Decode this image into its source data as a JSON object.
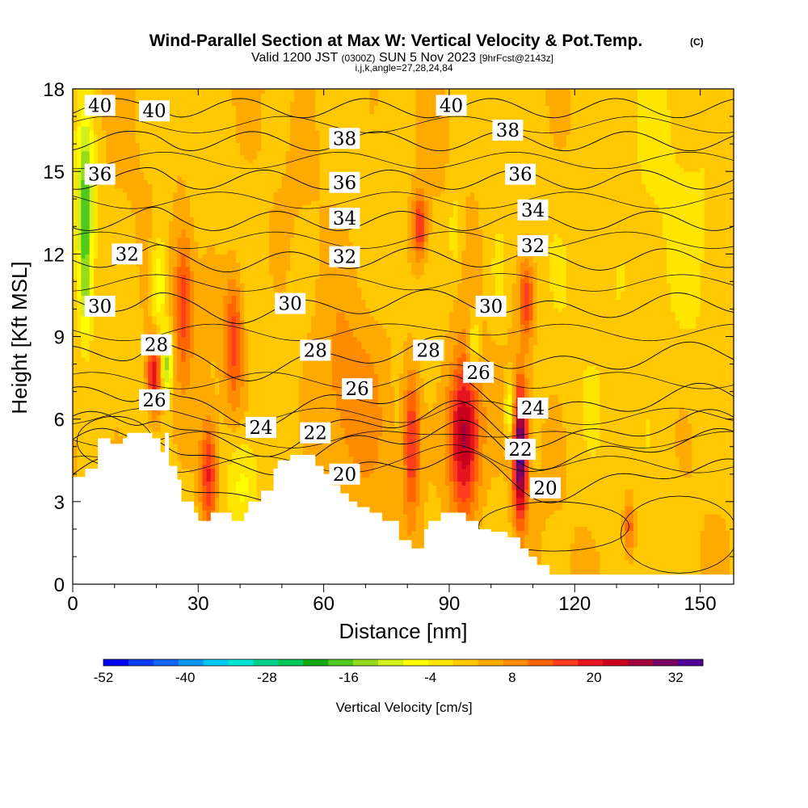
{
  "chart_data": {
    "type": "heatmap",
    "title": "Wind-Parallel Section at Max W: Vertical Velocity & Pot.Temp.",
    "title_mark": "(C)",
    "subtitle_valid": "Valid 1200 JST",
    "subtitle_utc": "(0300Z)",
    "subtitle_date": "SUN 5 Nov 2023",
    "subtitle_fcst": "[9hrFcst@2143z]",
    "subtitle_indices": "i,j,k,angle=27,28,24,84",
    "xlabel": "Distance [nm]",
    "ylabel": "Height [Kft MSL]",
    "xlim": [
      0,
      158
    ],
    "ylim": [
      0,
      18
    ],
    "x_ticks": [
      0,
      30,
      60,
      90,
      120,
      150
    ],
    "y_ticks": [
      0,
      3,
      6,
      9,
      12,
      15,
      18
    ],
    "colorbar": {
      "label": "Vertical Velocity [cm/s]",
      "tick_labels": [
        "-52",
        "-40",
        "-28",
        "-16",
        "-4",
        "8",
        "20",
        "32"
      ],
      "range": [
        -52,
        36
      ],
      "colors": [
        "#0000f0",
        "#0a3cf5",
        "#1464f5",
        "#0a96f0",
        "#00c8f0",
        "#00e6d2",
        "#00d28c",
        "#00c85a",
        "#14aa14",
        "#50c81e",
        "#96dc1e",
        "#d2f01e",
        "#ffff00",
        "#ffe600",
        "#ffc800",
        "#ffaa00",
        "#ff8c00",
        "#ff6400",
        "#ff3c1e",
        "#e6141e",
        "#c8001e",
        "#a0003c",
        "#780064",
        "#500096"
      ]
    },
    "contour_series_name": "Pot.Temp.",
    "contour_labels": [
      {
        "v": "40",
        "x": 6.5,
        "y": 17.4
      },
      {
        "v": "40",
        "x": 19.5,
        "y": 17.2
      },
      {
        "v": "40",
        "x": 90.5,
        "y": 17.4
      },
      {
        "v": "38",
        "x": 65,
        "y": 16.2
      },
      {
        "v": "38",
        "x": 104,
        "y": 16.5
      },
      {
        "v": "36",
        "x": 6.5,
        "y": 14.9
      },
      {
        "v": "36",
        "x": 65,
        "y": 14.6
      },
      {
        "v": "36",
        "x": 107,
        "y": 14.9
      },
      {
        "v": "34",
        "x": 65,
        "y": 13.3
      },
      {
        "v": "34",
        "x": 110,
        "y": 13.6
      },
      {
        "v": "32",
        "x": 13,
        "y": 12.0
      },
      {
        "v": "32",
        "x": 65,
        "y": 11.9
      },
      {
        "v": "32",
        "x": 110,
        "y": 12.3
      },
      {
        "v": "30",
        "x": 6.5,
        "y": 10.1
      },
      {
        "v": "30",
        "x": 52,
        "y": 10.2
      },
      {
        "v": "30",
        "x": 100,
        "y": 10.1
      },
      {
        "v": "28",
        "x": 20,
        "y": 8.7
      },
      {
        "v": "28",
        "x": 58,
        "y": 8.5
      },
      {
        "v": "28",
        "x": 85,
        "y": 8.5
      },
      {
        "v": "26",
        "x": 19.5,
        "y": 6.7
      },
      {
        "v": "26",
        "x": 68,
        "y": 7.1
      },
      {
        "v": "26",
        "x": 97,
        "y": 7.7
      },
      {
        "v": "24",
        "x": 45,
        "y": 5.7
      },
      {
        "v": "24",
        "x": 110,
        "y": 6.4
      },
      {
        "v": "22",
        "x": 58,
        "y": 5.5
      },
      {
        "v": "22",
        "x": 107,
        "y": 4.9
      },
      {
        "v": "20",
        "x": 65,
        "y": 4.0
      },
      {
        "v": "20",
        "x": 113,
        "y": 3.5
      }
    ],
    "contour_lines_theta": [
      20,
      22,
      24,
      26,
      28,
      30,
      32,
      34,
      36,
      38,
      40
    ],
    "vv_features": [
      {
        "x": 3,
        "y": 14.0,
        "sx": 1.4,
        "sy": 2.3,
        "w": -18
      },
      {
        "x": 3,
        "y": 10.8,
        "sx": 1.1,
        "sy": 1.4,
        "w": -10
      },
      {
        "x": 20.5,
        "y": 10.8,
        "sx": 1.3,
        "sy": 1.4,
        "w": -12
      },
      {
        "x": 22.5,
        "y": 8.0,
        "sx": 1.0,
        "sy": 0.8,
        "w": -16
      },
      {
        "x": 19.5,
        "y": 7.6,
        "sx": 1.3,
        "sy": 1.1,
        "w": 20
      },
      {
        "x": 26.5,
        "y": 10.3,
        "sx": 1.5,
        "sy": 1.8,
        "w": 14
      },
      {
        "x": 38.5,
        "y": 9.0,
        "sx": 1.6,
        "sy": 1.7,
        "w": 14
      },
      {
        "x": 32.5,
        "y": 4.0,
        "sx": 1.4,
        "sy": 1.4,
        "w": 16
      },
      {
        "x": 40.5,
        "y": 3.7,
        "sx": 2.8,
        "sy": 1.4,
        "w": -9
      },
      {
        "x": 93.5,
        "y": 5.4,
        "sx": 2.6,
        "sy": 2.0,
        "w": 26
      },
      {
        "x": 107,
        "y": 4.8,
        "sx": 1.2,
        "sy": 1.7,
        "w": 34
      },
      {
        "x": 81,
        "y": 5.2,
        "sx": 1.4,
        "sy": 1.8,
        "w": 16
      },
      {
        "x": 83,
        "y": 13.0,
        "sx": 1.2,
        "sy": 0.9,
        "w": 16
      },
      {
        "x": 91.5,
        "y": 12.8,
        "sx": 1.4,
        "sy": 1.4,
        "w": -6
      },
      {
        "x": 102,
        "y": 11.4,
        "sx": 1.4,
        "sy": 1.2,
        "w": -4
      },
      {
        "x": 108.5,
        "y": 10.3,
        "sx": 1.1,
        "sy": 1.0,
        "w": 14
      },
      {
        "x": 133,
        "y": 2.1,
        "sx": 1.0,
        "sy": 0.8,
        "w": 12
      },
      {
        "x": 96,
        "y": 8.7,
        "sx": 1.0,
        "sy": 0.8,
        "w": -10
      },
      {
        "x": 104.5,
        "y": 6.3,
        "sx": 0.8,
        "sy": 0.8,
        "w": -12
      },
      {
        "x": 66,
        "y": 6.5,
        "sx": 6,
        "sy": 2.5,
        "w": 6
      },
      {
        "x": 140,
        "y": 12.0,
        "sx": 14,
        "sy": 6.0,
        "w": -3
      }
    ],
    "terrain": [
      [
        0,
        3.9
      ],
      [
        3,
        3.9
      ],
      [
        3,
        4.2
      ],
      [
        6,
        4.2
      ],
      [
        6,
        5.3
      ],
      [
        9,
        5.3
      ],
      [
        9,
        5.1
      ],
      [
        12,
        5.1
      ],
      [
        12,
        5.3
      ],
      [
        13,
        5.3
      ],
      [
        13,
        5.5
      ],
      [
        19,
        5.5
      ],
      [
        19,
        5.3
      ],
      [
        21,
        5.3
      ],
      [
        21,
        4.8
      ],
      [
        22,
        4.8
      ],
      [
        22,
        5.5
      ],
      [
        23,
        5.5
      ],
      [
        23,
        4.3
      ],
      [
        25,
        4.3
      ],
      [
        25,
        3.8
      ],
      [
        26,
        3.8
      ],
      [
        26,
        3.0
      ],
      [
        29,
        3.0
      ],
      [
        29,
        2.6
      ],
      [
        30,
        2.6
      ],
      [
        30,
        2.3
      ],
      [
        33,
        2.3
      ],
      [
        33,
        2.6
      ],
      [
        38,
        2.6
      ],
      [
        38,
        2.3
      ],
      [
        41,
        2.3
      ],
      [
        41,
        2.6
      ],
      [
        42,
        2.6
      ],
      [
        42,
        3.0
      ],
      [
        45,
        3.0
      ],
      [
        45,
        3.4
      ],
      [
        48,
        3.4
      ],
      [
        48,
        4.2
      ],
      [
        49,
        4.2
      ],
      [
        49,
        4.5
      ],
      [
        52,
        4.5
      ],
      [
        52,
        4.7
      ],
      [
        58,
        4.7
      ],
      [
        58,
        4.3
      ],
      [
        60,
        4.3
      ],
      [
        60,
        4.0
      ],
      [
        62,
        4.0
      ],
      [
        62,
        3.6
      ],
      [
        64,
        3.6
      ],
      [
        64,
        3.3
      ],
      [
        66,
        3.3
      ],
      [
        66,
        3.0
      ],
      [
        68,
        3.0
      ],
      [
        68,
        2.8
      ],
      [
        71,
        2.8
      ],
      [
        71,
        2.6
      ],
      [
        74,
        2.6
      ],
      [
        74,
        2.3
      ],
      [
        78,
        2.3
      ],
      [
        78,
        1.6
      ],
      [
        81,
        1.6
      ],
      [
        81,
        1.3
      ],
      [
        84,
        1.3
      ],
      [
        84,
        2.0
      ],
      [
        85,
        2.0
      ],
      [
        85,
        2.3
      ],
      [
        88,
        2.3
      ],
      [
        88,
        2.6
      ],
      [
        94,
        2.6
      ],
      [
        94,
        2.3
      ],
      [
        97,
        2.3
      ],
      [
        97,
        2.0
      ],
      [
        100,
        2.0
      ],
      [
        100,
        1.9
      ],
      [
        104,
        1.9
      ],
      [
        104,
        1.7
      ],
      [
        107,
        1.7
      ],
      [
        107,
        1.3
      ],
      [
        109,
        1.3
      ],
      [
        109,
        1.0
      ],
      [
        111,
        1.0
      ],
      [
        111,
        0.7
      ],
      [
        114,
        0.7
      ],
      [
        114,
        0.35
      ],
      [
        158,
        0.35
      ],
      [
        158,
        0
      ],
      [
        0,
        0
      ]
    ]
  }
}
